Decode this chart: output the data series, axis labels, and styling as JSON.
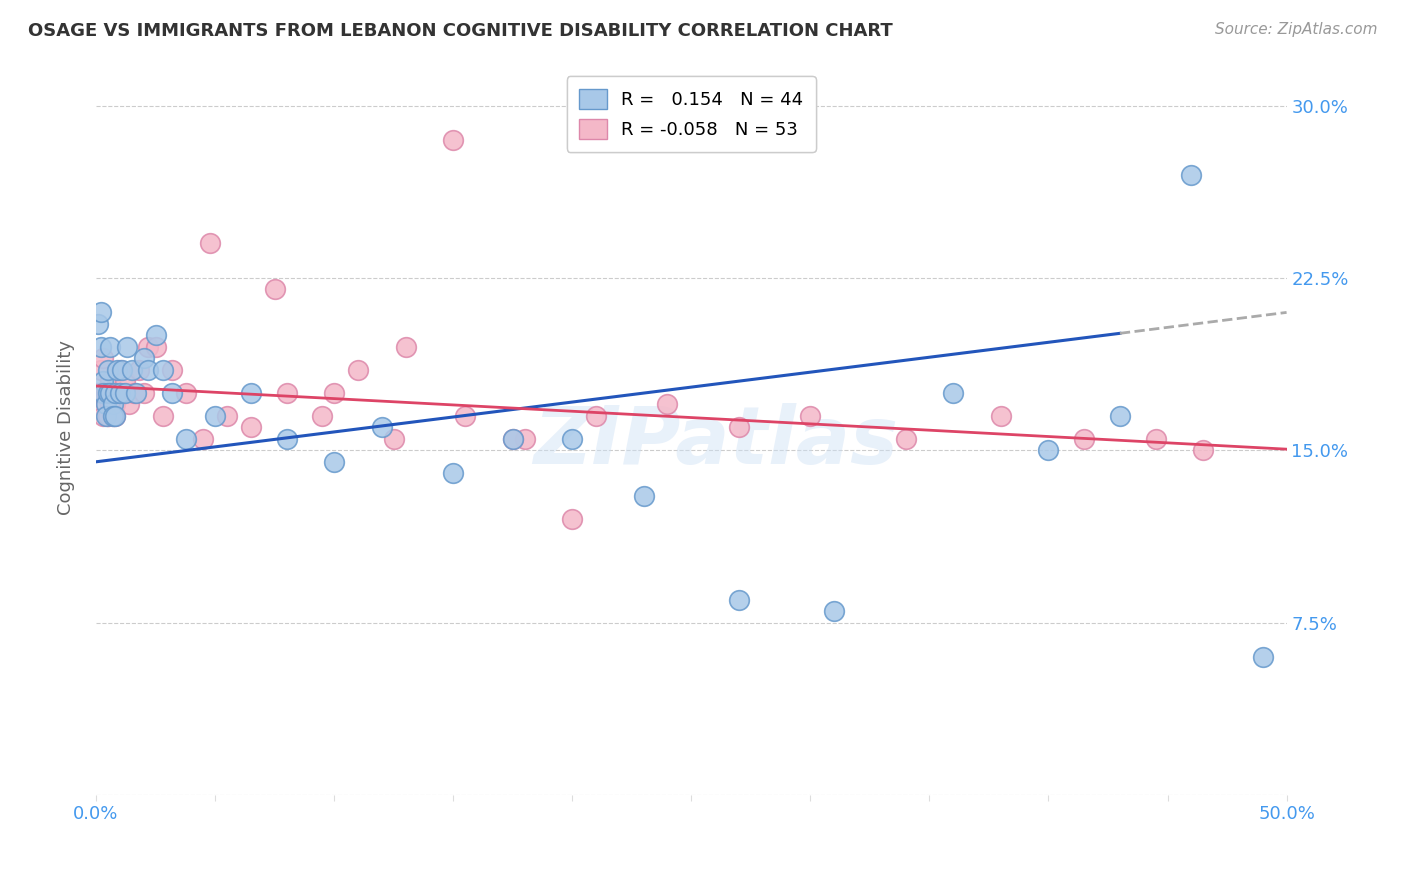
{
  "title": "OSAGE VS IMMIGRANTS FROM LEBANON COGNITIVE DISABILITY CORRELATION CHART",
  "source": "Source: ZipAtlas.com",
  "ylabel": "Cognitive Disability",
  "xlim": [
    0.0,
    0.5
  ],
  "ylim": [
    0.0,
    0.32
  ],
  "R_osage": 0.154,
  "N_osage": 44,
  "R_lebanon": -0.058,
  "N_lebanon": 53,
  "osage_color": "#a8c8e8",
  "osage_edge_color": "#6699cc",
  "lebanon_color": "#f4b8c8",
  "lebanon_edge_color": "#dd88aa",
  "osage_line_color": "#2255bb",
  "lebanon_line_color": "#dd4466",
  "watermark": "ZIPatlas",
  "osage_x": [
    0.001,
    0.002,
    0.002,
    0.003,
    0.003,
    0.004,
    0.004,
    0.005,
    0.005,
    0.006,
    0.006,
    0.007,
    0.007,
    0.008,
    0.008,
    0.009,
    0.01,
    0.011,
    0.012,
    0.013,
    0.015,
    0.017,
    0.02,
    0.022,
    0.025,
    0.028,
    0.032,
    0.038,
    0.05,
    0.065,
    0.08,
    0.1,
    0.12,
    0.15,
    0.175,
    0.2,
    0.23,
    0.27,
    0.31,
    0.36,
    0.4,
    0.43,
    0.46,
    0.49
  ],
  "osage_y": [
    0.205,
    0.21,
    0.195,
    0.18,
    0.175,
    0.17,
    0.165,
    0.185,
    0.175,
    0.195,
    0.175,
    0.17,
    0.165,
    0.175,
    0.165,
    0.185,
    0.175,
    0.185,
    0.175,
    0.195,
    0.185,
    0.175,
    0.19,
    0.185,
    0.2,
    0.185,
    0.175,
    0.155,
    0.165,
    0.175,
    0.155,
    0.145,
    0.16,
    0.14,
    0.155,
    0.155,
    0.13,
    0.085,
    0.08,
    0.175,
    0.15,
    0.165,
    0.27,
    0.06
  ],
  "lebanon_x": [
    0.001,
    0.002,
    0.002,
    0.003,
    0.003,
    0.004,
    0.004,
    0.005,
    0.005,
    0.006,
    0.006,
    0.007,
    0.007,
    0.008,
    0.008,
    0.009,
    0.01,
    0.011,
    0.012,
    0.014,
    0.016,
    0.018,
    0.02,
    0.022,
    0.025,
    0.028,
    0.032,
    0.038,
    0.045,
    0.055,
    0.065,
    0.08,
    0.095,
    0.11,
    0.13,
    0.155,
    0.18,
    0.21,
    0.24,
    0.27,
    0.3,
    0.34,
    0.38,
    0.415,
    0.445,
    0.465,
    0.048,
    0.075,
    0.1,
    0.125,
    0.15,
    0.175,
    0.2
  ],
  "lebanon_y": [
    0.175,
    0.185,
    0.175,
    0.19,
    0.165,
    0.175,
    0.17,
    0.165,
    0.165,
    0.18,
    0.17,
    0.175,
    0.165,
    0.17,
    0.165,
    0.175,
    0.185,
    0.175,
    0.18,
    0.17,
    0.175,
    0.185,
    0.175,
    0.195,
    0.195,
    0.165,
    0.185,
    0.175,
    0.155,
    0.165,
    0.16,
    0.175,
    0.165,
    0.185,
    0.195,
    0.165,
    0.155,
    0.165,
    0.17,
    0.16,
    0.165,
    0.155,
    0.165,
    0.155,
    0.155,
    0.15,
    0.24,
    0.22,
    0.175,
    0.155,
    0.285,
    0.155,
    0.12
  ]
}
